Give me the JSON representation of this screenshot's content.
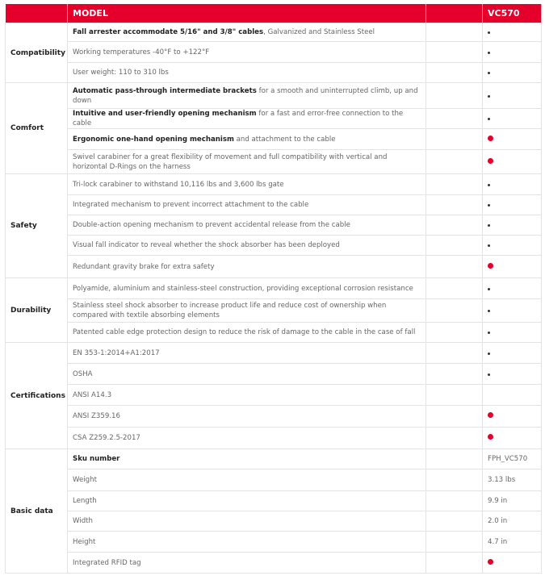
{
  "header": {
    "col1": "",
    "model": "MODEL",
    "blank": "",
    "product": "VC570"
  },
  "colors": {
    "accent": "#e4002b"
  },
  "groups": [
    {
      "category": "Compatibility",
      "rows": [
        {
          "bold": "Fall arrester accommodate 5/16\" and 3/8\" cables",
          "text": ", Galvanized and Stainless Steel",
          "value": "dot",
          "h": 23
        },
        {
          "bold": "",
          "text": "Working temperatures -40°F to +122°F",
          "value": "dot",
          "h": 26
        },
        {
          "bold": "",
          "text": "User weight: 110 to 310 lbs",
          "value": "dot",
          "h": 25
        }
      ]
    },
    {
      "category": "Comfort",
      "rows": [
        {
          "bold": "Automatic pass-through intermediate brackets",
          "text": " for a smooth and uninterrupted climb, up and down",
          "value": "dot",
          "h": 32
        },
        {
          "bold": "Intuitive and user-friendly opening mechanism",
          "text": " for a fast and error-free connection to the cable",
          "value": "dot",
          "h": 25
        },
        {
          "bold": "Ergonomic one-hand opening mechanism",
          "text": " and attachment to the cable",
          "value": "red",
          "h": 26
        },
        {
          "bold": "",
          "text": "Swivel carabiner for a great flexibility of movement and full compatibility with vertical and horizontal D-Rings on the harness",
          "value": "red",
          "h": 30
        }
      ]
    },
    {
      "category": "Safety",
      "rows": [
        {
          "bold": "",
          "text": "Tri-lock carabiner to withstand 10,116 lbs and 3,600 lbs gate",
          "value": "dot",
          "h": 26
        },
        {
          "bold": "",
          "text": "Integrated mechanism to prevent incorrect attachment to the cable",
          "value": "dot",
          "h": 25
        },
        {
          "bold": "",
          "text": "Double-action opening mechanism to prevent accidental release from the cable",
          "value": "dot",
          "h": 25
        },
        {
          "bold": "",
          "text": "Visual fall indicator to reveal whether the shock absorber has been deployed",
          "value": "dot",
          "h": 25
        },
        {
          "bold": "",
          "text": "Redundant gravity brake for extra safety",
          "value": "red",
          "h": 28
        }
      ]
    },
    {
      "category": "Durability",
      "rows": [
        {
          "bold": "",
          "text": "Polyamide, aluminium and stainless-steel construction, providing exceptional corrosion resistance",
          "value": "dot",
          "h": 26
        },
        {
          "bold": "",
          "text": "Stainless steel shock absorber to increase product life and reduce cost of ownership when compared with textile absorbing elements",
          "value": "dot",
          "h": 29
        },
        {
          "bold": "",
          "text": "Patented cable edge protection design to reduce the risk of damage to the cable in the case of fall",
          "value": "dot",
          "h": 25
        }
      ]
    },
    {
      "category": "Certifications",
      "rows": [
        {
          "bold": "",
          "text": "EN 353-1:2014+A1:2017",
          "value": "dot",
          "h": 26
        },
        {
          "bold": "",
          "text": "OSHA",
          "value": "dot",
          "h": 26
        },
        {
          "bold": "",
          "text": "ANSI A14.3",
          "value": "",
          "h": 26
        },
        {
          "bold": "",
          "text": "ANSI Z359.16",
          "value": "red",
          "h": 27
        },
        {
          "bold": "",
          "text": "CSA Z259.2.5-2017",
          "value": "red",
          "h": 27
        }
      ]
    },
    {
      "category": "Basic data",
      "rows": [
        {
          "bold": "Sku number",
          "text": "",
          "value": "FPH_VC570",
          "h": 25
        },
        {
          "bold": "",
          "text": "Weight",
          "value": "3.13 lbs",
          "h": 27
        },
        {
          "bold": "",
          "text": "Length",
          "value": "9.9 in",
          "h": 25
        },
        {
          "bold": "",
          "text": "Width",
          "value": "2.0 in",
          "h": 25
        },
        {
          "bold": "",
          "text": "Height",
          "value": "4.7 in",
          "h": 26
        },
        {
          "bold": "",
          "text": "Integrated RFID tag",
          "value": "red",
          "h": 26
        }
      ]
    }
  ]
}
